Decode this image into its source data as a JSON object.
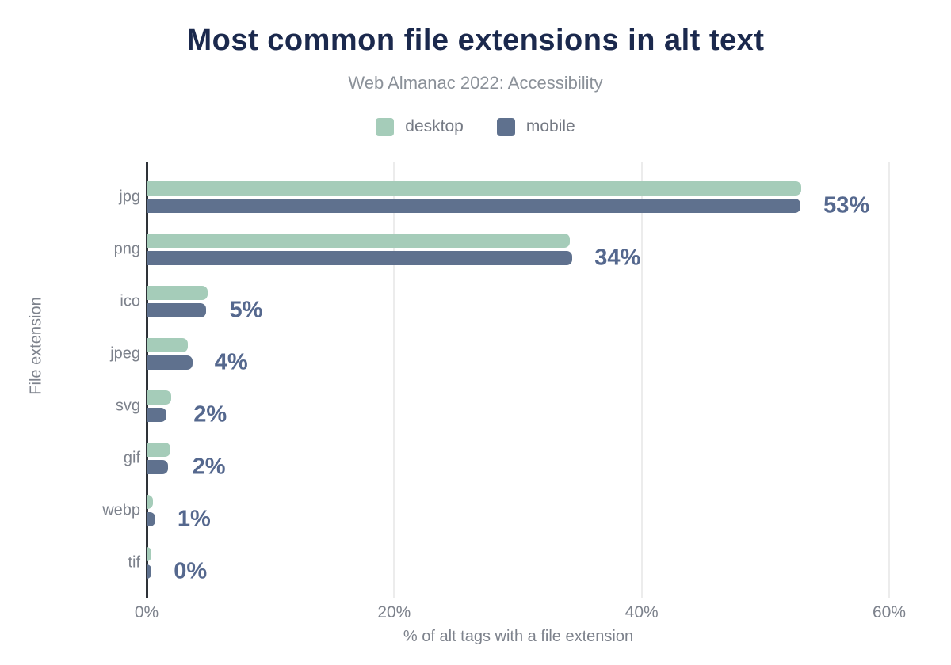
{
  "chart_data": {
    "type": "bar",
    "orientation": "horizontal",
    "title": "Most common file extensions in alt text",
    "subtitle": "Web Almanac 2022: Accessibility",
    "xlabel": "% of alt tags with a file extension",
    "ylabel": "File extension",
    "categories": [
      "jpg",
      "png",
      "ico",
      "jpeg",
      "svg",
      "gif",
      "webp",
      "tif"
    ],
    "series": [
      {
        "name": "desktop",
        "color": "#a5ccb9",
        "values": [
          52.9,
          34.2,
          4.9,
          3.3,
          2.0,
          1.9,
          0.5,
          0.4
        ]
      },
      {
        "name": "mobile",
        "color": "#5f718e",
        "values": [
          52.8,
          34.4,
          4.8,
          3.7,
          1.6,
          1.7,
          0.7,
          0.4
        ]
      }
    ],
    "value_labels": [
      "53%",
      "34%",
      "5%",
      "4%",
      "2%",
      "2%",
      "1%",
      "0%"
    ],
    "x_ticks": [
      "0%",
      "20%",
      "40%",
      "60%"
    ],
    "x_tick_values": [
      0,
      20,
      40,
      60
    ],
    "xlim": [
      0,
      60
    ],
    "grid": "vertical",
    "legend_position": "top"
  },
  "colors": {
    "title": "#1b294d",
    "subtitle": "#8b9199",
    "axis_text": "#7d828c",
    "value_label": "#55688e",
    "gridline": "#ececec",
    "axis_line": "#2e3238",
    "desktop_bar": "#a5ccb9",
    "mobile_bar": "#5f718e",
    "background": "#ffffff"
  }
}
